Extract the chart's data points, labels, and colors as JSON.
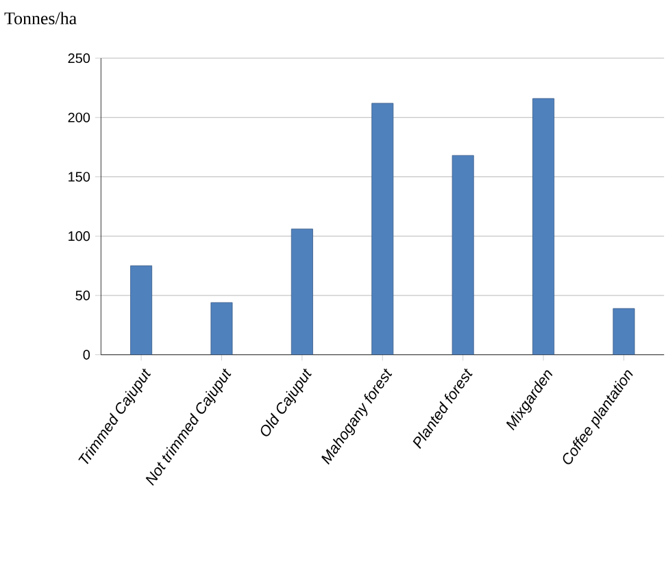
{
  "chart_data": {
    "type": "bar",
    "ylabel": "Tonnes/ha",
    "categories": [
      "Trimmed Cajuput",
      "Not trimmed Cajuput",
      "Old Cajuput",
      "Mahogany forest",
      "Planted forest",
      "Mixgarden",
      "Coffee plantation"
    ],
    "values": [
      75,
      44,
      106,
      212,
      168,
      216,
      39
    ],
    "color": "#4f81bd",
    "ylim": [
      0,
      250
    ],
    "yticks": [
      0,
      50,
      100,
      150,
      200,
      250
    ],
    "grid": "y"
  }
}
